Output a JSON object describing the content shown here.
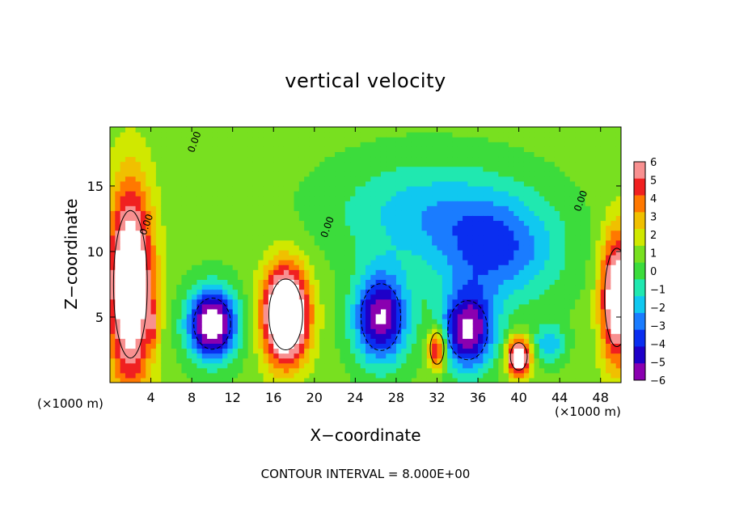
{
  "chart_data": {
    "type": "heatmap",
    "title": "vertical velocity",
    "xlabel": "X−coordinate",
    "ylabel": "Z−coordinate",
    "x_unit": "(×1000 m)",
    "xlim": [
      0,
      50
    ],
    "ylim": [
      0,
      19.5
    ],
    "x_ticks": [
      4,
      8,
      12,
      16,
      20,
      24,
      28,
      32,
      36,
      40,
      44,
      48
    ],
    "y_ticks": [
      5,
      10,
      15
    ],
    "colorbar": {
      "ticks": [
        "6",
        "5",
        "4",
        "3",
        "2",
        "1",
        "0",
        "−1",
        "−2",
        "−3",
        "−4",
        "−5",
        "−6"
      ],
      "range": [
        -6,
        6
      ]
    },
    "contour_labels": [
      "0.00",
      "0.00",
      "0.00",
      "0.00"
    ],
    "footnote": "CONTOUR INTERVAL = 8.000E+00",
    "background_value": 0.8,
    "features": [
      {
        "x": 2.0,
        "z": 7.5,
        "sx": 2.2,
        "sz": 7.5,
        "w": 9.0
      },
      {
        "x": 17.2,
        "z": 5.2,
        "sx": 2.2,
        "sz": 3.6,
        "w": 11.0
      },
      {
        "x": 49.6,
        "z": 6.5,
        "sx": 1.6,
        "sz": 5.0,
        "w": 8.0
      },
      {
        "x": 32.0,
        "z": 2.6,
        "sx": 0.9,
        "sz": 1.6,
        "w": 6.0
      },
      {
        "x": 40.0,
        "z": 2.0,
        "sx": 1.1,
        "sz": 1.4,
        "w": 8.5
      },
      {
        "x": 4.3,
        "z": 4.5,
        "sx": 0.5,
        "sz": 1.5,
        "w": 2.5
      },
      {
        "x": 10.0,
        "z": 4.5,
        "sx": 2.4,
        "sz": 2.6,
        "w": -9.0
      },
      {
        "x": 26.5,
        "z": 5.0,
        "sx": 2.6,
        "sz": 3.4,
        "w": -7.5
      },
      {
        "x": 35.0,
        "z": 4.0,
        "sx": 2.6,
        "sz": 3.0,
        "w": -7.5
      },
      {
        "x": 38.0,
        "z": 10.0,
        "sx": 6.0,
        "sz": 4.0,
        "w": -4.0
      },
      {
        "x": 31.0,
        "z": 13.0,
        "sx": 9.0,
        "sz": 4.0,
        "w": -2.8
      },
      {
        "x": 43.0,
        "z": 3.0,
        "sx": 1.5,
        "sz": 1.5,
        "w": -3.0
      }
    ],
    "grid": false
  }
}
